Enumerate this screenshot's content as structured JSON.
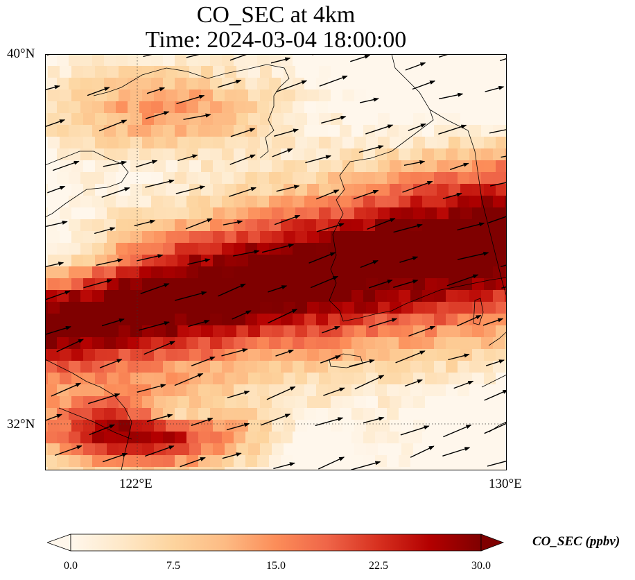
{
  "title": {
    "line1": "CO_SEC at 4km",
    "line2": "Time: 2024-03-04 18:00:00"
  },
  "map": {
    "variable": "CO_SEC",
    "extent": {
      "lon_min": 120,
      "lon_max": 130,
      "lat_min": 31,
      "lat_max": 40
    },
    "lat_ticks": [
      {
        "value": 40,
        "label": "40°N"
      },
      {
        "value": 32,
        "label": "32°N"
      }
    ],
    "lon_ticks": [
      {
        "value": 122,
        "label": "122°E"
      },
      {
        "value": 130,
        "label": "130°E"
      }
    ],
    "gridlines": {
      "lats": [
        32
      ],
      "lons": [
        122
      ],
      "style": "dotted"
    },
    "field_description": "High CO (saturated, >=30 ppbv) plume over Yellow Sea, Korean Peninsula and East China Sea, low values near coasts and in north-east corner",
    "wind_vectors": "westerly to west-south-westerly flow across domain"
  },
  "colorbar": {
    "label": "CO_SEC (ppbv)",
    "min": 0.0,
    "max": 30.0,
    "ticks": [
      "0.0",
      "7.5",
      "15.0",
      "22.5",
      "30.0"
    ],
    "extend": "both",
    "colormap": "OrRd",
    "colors": [
      "#fff7ec",
      "#fee8c8",
      "#fdd49e",
      "#fdbb84",
      "#fc8d59",
      "#ef6548",
      "#d7301f",
      "#b30000",
      "#7f0000"
    ]
  }
}
